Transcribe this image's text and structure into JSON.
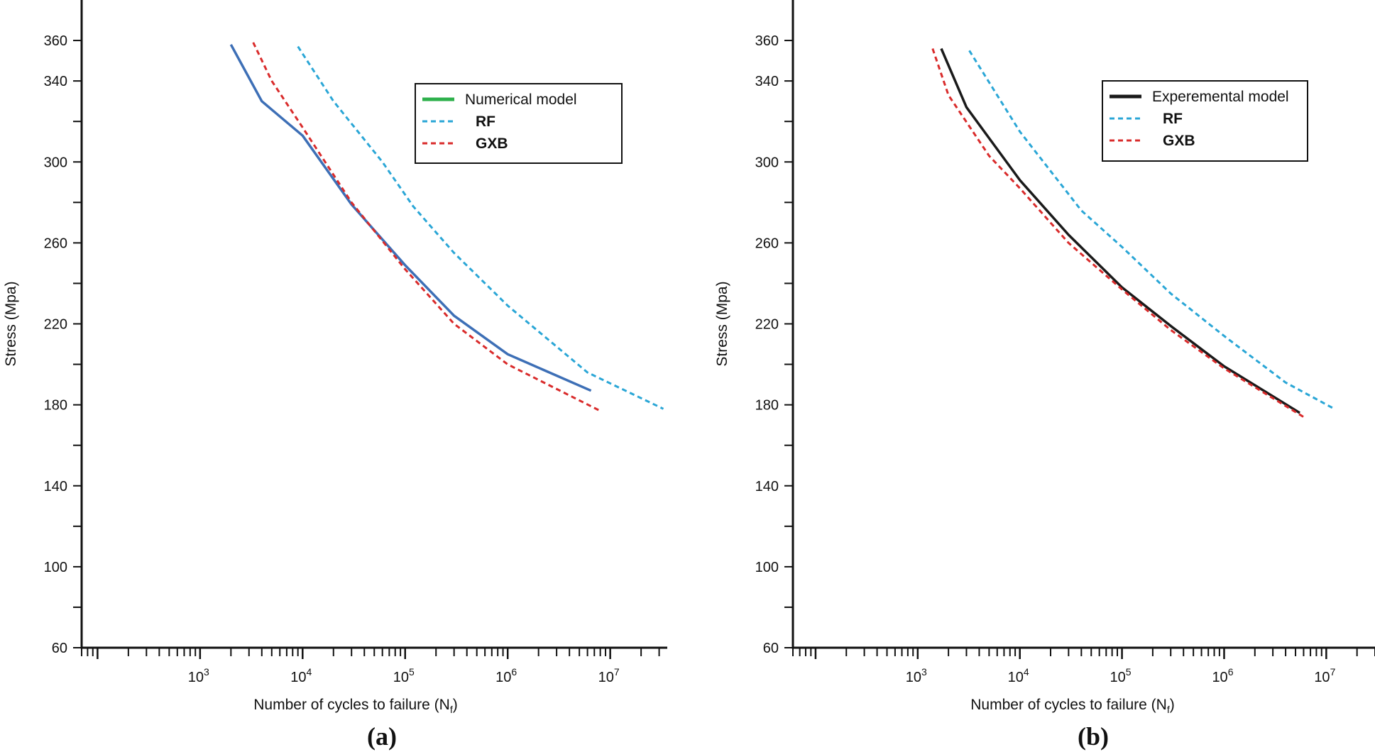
{
  "chart_data": [
    {
      "panel": "(a)",
      "type": "line",
      "xlabel": "Number of cycles to failure (N",
      "xlabel_sub": "f",
      "xlabel_close": ")",
      "ylabel": "Stress (Mpa)",
      "xscale": "log",
      "xlim": [
        70,
        36000000
      ],
      "ylim": [
        60,
        380
      ],
      "yticks": [
        60,
        100,
        140,
        180,
        220,
        260,
        300,
        340,
        360
      ],
      "xticks": [
        {
          "base": "10",
          "exp": "3",
          "value": 1000
        },
        {
          "base": "10",
          "exp": "4",
          "value": 10000
        },
        {
          "base": "10",
          "exp": "5",
          "value": 100000
        },
        {
          "base": "10",
          "exp": "6",
          "value": 1000000
        },
        {
          "base": "10",
          "exp": "7",
          "value": 10000000
        }
      ],
      "grid": false,
      "legend": {
        "position": "top-right"
      },
      "series": [
        {
          "name": "Numerical model",
          "legend_color": "#2db04b",
          "color": "#3d6fb6",
          "dash": "solid",
          "legend_bold": false,
          "points": [
            [
              2000,
              358
            ],
            [
              4000,
              330
            ],
            [
              10000,
              313
            ],
            [
              30000,
              279
            ],
            [
              100000,
              249
            ],
            [
              300000,
              224
            ],
            [
              1000000,
              205
            ],
            [
              6500000,
              187
            ]
          ]
        },
        {
          "name": "RF",
          "legend_color": "#2aa6d6",
          "color": "#2aa6d6",
          "dash": "dashed",
          "legend_bold": true,
          "points": [
            [
              9000,
              357
            ],
            [
              20000,
              330
            ],
            [
              60000,
              300
            ],
            [
              120000,
              278
            ],
            [
              300000,
              255
            ],
            [
              1000000,
              229
            ],
            [
              6000000,
              196
            ],
            [
              33000000,
              178
            ]
          ]
        },
        {
          "name": "GXB",
          "legend_color": "#d92b2b",
          "color": "#d92b2b",
          "dash": "dashed",
          "legend_bold": true,
          "points": [
            [
              3300,
              359
            ],
            [
              5000,
              340
            ],
            [
              10000,
              317
            ],
            [
              30000,
              280
            ],
            [
              100000,
              247
            ],
            [
              300000,
              220
            ],
            [
              1000000,
              200
            ],
            [
              8000000,
              177
            ]
          ]
        }
      ]
    },
    {
      "panel": "(b)",
      "type": "line",
      "xlabel": "Number of cycles to failure (N",
      "xlabel_sub": "f",
      "xlabel_close": ")",
      "ylabel": "Stress (Mpa)",
      "xscale": "log",
      "xlim": [
        60,
        30000000
      ],
      "ylim": [
        60,
        380
      ],
      "yticks": [
        60,
        100,
        140,
        180,
        220,
        260,
        300,
        340,
        360
      ],
      "xticks": [
        {
          "base": "10",
          "exp": "3",
          "value": 1000
        },
        {
          "base": "10",
          "exp": "4",
          "value": 10000
        },
        {
          "base": "10",
          "exp": "5",
          "value": 100000
        },
        {
          "base": "10",
          "exp": "6",
          "value": 1000000
        },
        {
          "base": "10",
          "exp": "7",
          "value": 10000000
        }
      ],
      "grid": false,
      "legend": {
        "position": "top-right"
      },
      "series": [
        {
          "name": "Experemental model",
          "legend_color": "#1a1a1a",
          "color": "#1a1a1a",
          "dash": "solid",
          "legend_bold": false,
          "points": [
            [
              1700,
              356
            ],
            [
              3000,
              327
            ],
            [
              10000,
              291
            ],
            [
              30000,
              264
            ],
            [
              100000,
              238
            ],
            [
              300000,
              219
            ],
            [
              1000000,
              199
            ],
            [
              5500000,
              176
            ]
          ]
        },
        {
          "name": "RF",
          "legend_color": "#2aa6d6",
          "color": "#2aa6d6",
          "dash": "dashed",
          "legend_bold": true,
          "points": [
            [
              3200,
              355
            ],
            [
              10000,
              315
            ],
            [
              40000,
              276
            ],
            [
              100000,
              258
            ],
            [
              300000,
              235
            ],
            [
              1000000,
              214
            ],
            [
              4000000,
              191
            ],
            [
              12000000,
              178
            ]
          ]
        },
        {
          "name": "GXB",
          "legend_color": "#d92b2b",
          "color": "#d92b2b",
          "dash": "dashed",
          "legend_bold": true,
          "points": [
            [
              1400,
              356
            ],
            [
              2000,
              333
            ],
            [
              5000,
              303
            ],
            [
              10000,
              287
            ],
            [
              30000,
              260
            ],
            [
              100000,
              237
            ],
            [
              300000,
              217
            ],
            [
              1000000,
              198
            ],
            [
              6000000,
              174
            ]
          ]
        }
      ]
    }
  ]
}
